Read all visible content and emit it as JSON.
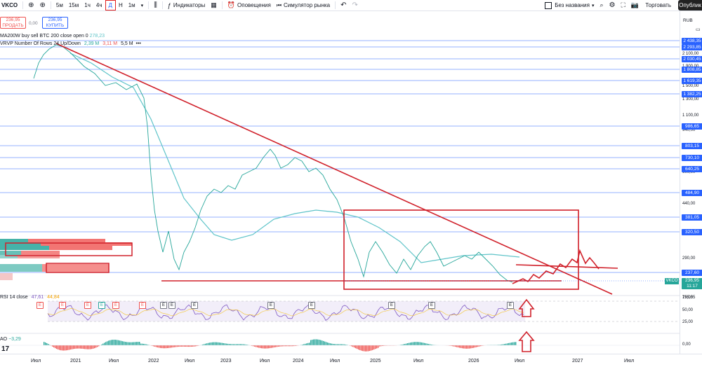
{
  "toolbar": {
    "symbol": "VKCO",
    "timeframes": [
      "5м",
      "15м",
      "1ч",
      "4ч",
      "Д",
      "Н",
      "1м"
    ],
    "indicators_label": "Индикаторы",
    "alerts_label": "Оповещения",
    "replay_label": "Симулятор рынка",
    "layout_name": "Без названия",
    "trade_label": "Торговать",
    "publish_label": "Опублик"
  },
  "trade_box": {
    "sell_price": "236,95",
    "sell_label": "ПРОДАТЬ",
    "spread": "0,00",
    "buy_price": "236,95",
    "buy_label": "КУПИТЬ"
  },
  "legends": {
    "ma_label": "MA200W buy sell BTC 200 close open 0",
    "ma_value": "278,23",
    "vrvp_label": "VRVP Number Of Rows 24 Up/Down",
    "vrvp_up": "2,39 M",
    "vrvp_down": "3,11 M",
    "vrvp_total": "5,5 M",
    "rsi_label": "RSI 14 close",
    "rsi_v1": "47,61",
    "rsi_v2": "44,84",
    "ao_label": "AO",
    "ao_value": "−3,29"
  },
  "price_axis": {
    "currency": "RUB",
    "ticks": [
      "2 100,00",
      "1 900,00",
      "1 500,00",
      "1 300,00",
      "1 100,00",
      "940,00",
      "600,00",
      "440,00",
      "290,00",
      "195,55"
    ],
    "level_badges": [
      "2 438,35",
      "2 293,85",
      "2 030,45",
      "1 808,85",
      "1 619,35",
      "1 382,25",
      "986,65",
      "803,15",
      "730,10",
      "640,25",
      "484,90",
      "381,05",
      "320,50",
      "237,60"
    ],
    "current_price": "236,95",
    "countdown": "11:17",
    "ticker_badge": "VKCO",
    "rsi_ticks": [
      "75,00",
      "50,00",
      "25,00"
    ],
    "ao_tick": "0,00"
  },
  "time_axis": [
    "Июл",
    "2021",
    "Июл",
    "2022",
    "Июл",
    "2023",
    "Июл",
    "2024",
    "Июл",
    "2025",
    "Июл",
    "2026",
    "Июл",
    "2027",
    "Июл"
  ],
  "events": [
    "E",
    "E",
    "E",
    "E",
    "E",
    "E",
    "E",
    "E",
    "E",
    "E",
    "E",
    "E",
    "E",
    "E"
  ],
  "colors": {
    "candle_up": "#26a69a",
    "candle_down": "#ef5350",
    "trendline": "#d0202a",
    "level": "#2962ff",
    "ma": "#5fc4c9",
    "rsi": "#7e57c2"
  }
}
